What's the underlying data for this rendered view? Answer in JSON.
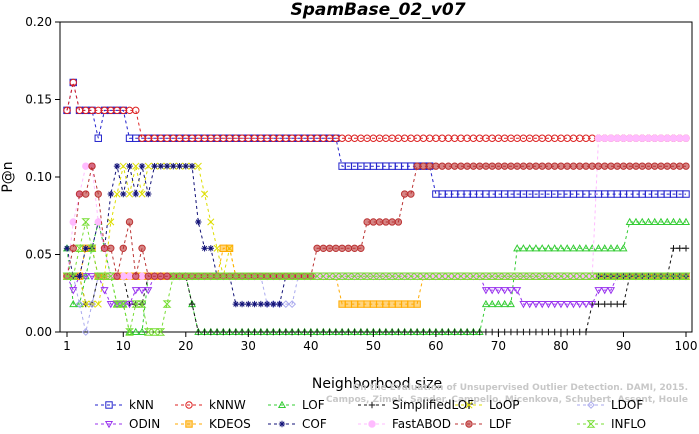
{
  "chart_data": {
    "type": "line",
    "title": "SpamBase_02_v07",
    "xlabel": "Neighborhood size",
    "ylabel": "P@n",
    "xlim": [
      1,
      100
    ],
    "ylim": [
      0,
      0.2
    ],
    "xticks": [
      1,
      10,
      20,
      30,
      40,
      50,
      60,
      70,
      80,
      90,
      100
    ],
    "yticks": [
      "0.00",
      "0.05",
      "0.10",
      "0.15",
      "0.20"
    ],
    "credit_line1": "Campos, Zimek, Sander, Campello, Micenkova, Schubert, Assent, Houle",
    "credit_line2": "On the Evaluation of Unsupervised Outlier Detection. DAMI, 2015.",
    "legend_position": "bottom",
    "series": [
      {
        "name": "kNN",
        "color": "#2222cc",
        "marker": "square",
        "points": [
          [
            1,
            0.143
          ],
          [
            2,
            0.161
          ],
          [
            3,
            0.143
          ],
          [
            5,
            0.143
          ],
          [
            6,
            0.125
          ],
          [
            7,
            0.143
          ],
          [
            10,
            0.143
          ],
          [
            11,
            0.125
          ],
          [
            44,
            0.125
          ],
          [
            45,
            0.107
          ],
          [
            59,
            0.107
          ],
          [
            60,
            0.089
          ],
          [
            100,
            0.089
          ]
        ]
      },
      {
        "name": "kNNW",
        "color": "#dd2222",
        "marker": "circle",
        "points": [
          [
            1,
            0.143
          ],
          [
            2,
            0.161
          ],
          [
            3,
            0.143
          ],
          [
            12,
            0.143
          ],
          [
            13,
            0.125
          ],
          [
            100,
            0.125
          ]
        ]
      },
      {
        "name": "LOF",
        "color": "#33cc33",
        "marker": "triangle",
        "points": [
          [
            1,
            0.054
          ],
          [
            2,
            0.018
          ],
          [
            3,
            0.018
          ],
          [
            4,
            0.036
          ],
          [
            5,
            0.054
          ],
          [
            6,
            0.071
          ],
          [
            7,
            0.054
          ],
          [
            8,
            0.036
          ],
          [
            9,
            0.018
          ],
          [
            10,
            0.018
          ],
          [
            11,
            0.0
          ],
          [
            13,
            0.0
          ],
          [
            14,
            0.036
          ],
          [
            20,
            0.036
          ],
          [
            21,
            0.018
          ],
          [
            22,
            0.0
          ],
          [
            67,
            0.0
          ],
          [
            68,
            0.018
          ],
          [
            72,
            0.018
          ],
          [
            73,
            0.054
          ],
          [
            90,
            0.054
          ],
          [
            91,
            0.071
          ],
          [
            100,
            0.071
          ]
        ]
      },
      {
        "name": "SimplifiedLOF",
        "color": "#111111",
        "marker": "plus",
        "points": [
          [
            1,
            0.036
          ],
          [
            2,
            0.036
          ],
          [
            3,
            0.036
          ],
          [
            4,
            0.018
          ],
          [
            5,
            0.018
          ],
          [
            6,
            0.036
          ],
          [
            10,
            0.036
          ],
          [
            11,
            0.018
          ],
          [
            13,
            0.018
          ],
          [
            14,
            0.036
          ],
          [
            20,
            0.036
          ],
          [
            21,
            0.018
          ],
          [
            22,
            0.0
          ],
          [
            84,
            0.0
          ],
          [
            85,
            0.018
          ],
          [
            90,
            0.018
          ],
          [
            91,
            0.036
          ],
          [
            97,
            0.036
          ],
          [
            98,
            0.054
          ],
          [
            100,
            0.054
          ]
        ]
      },
      {
        "name": "LoOP",
        "color": "#dddd00",
        "marker": "x",
        "points": [
          [
            1,
            0.036
          ],
          [
            3,
            0.036
          ],
          [
            4,
            0.018
          ],
          [
            6,
            0.018
          ],
          [
            7,
            0.036
          ],
          [
            8,
            0.071
          ],
          [
            9,
            0.089
          ],
          [
            10,
            0.107
          ],
          [
            11,
            0.089
          ],
          [
            12,
            0.107
          ],
          [
            13,
            0.089
          ],
          [
            14,
            0.107
          ],
          [
            22,
            0.107
          ],
          [
            23,
            0.089
          ],
          [
            24,
            0.071
          ],
          [
            25,
            0.054
          ],
          [
            26,
            0.036
          ],
          [
            27,
            0.054
          ],
          [
            28,
            0.036
          ],
          [
            100,
            0.036
          ]
        ]
      },
      {
        "name": "LDOF",
        "color": "#aaaaee",
        "marker": "diamond",
        "points": [
          [
            1,
            0.036
          ],
          [
            2,
            0.036
          ],
          [
            3,
            0.018
          ],
          [
            4,
            0.0
          ],
          [
            5,
            0.018
          ],
          [
            6,
            0.036
          ],
          [
            32,
            0.036
          ],
          [
            33,
            0.018
          ],
          [
            37,
            0.018
          ],
          [
            38,
            0.036
          ],
          [
            100,
            0.036
          ]
        ]
      },
      {
        "name": "ODIN",
        "color": "#9933ee",
        "marker": "triangle-down",
        "points": [
          [
            1,
            0.036
          ],
          [
            2,
            0.027
          ],
          [
            3,
            0.036
          ],
          [
            6,
            0.036
          ],
          [
            7,
            0.027
          ],
          [
            8,
            0.018
          ],
          [
            9,
            0.018
          ],
          [
            10,
            0.018
          ],
          [
            11,
            0.018
          ],
          [
            12,
            0.027
          ],
          [
            13,
            0.027
          ],
          [
            14,
            0.027
          ],
          [
            15,
            0.036
          ],
          [
            67,
            0.036
          ],
          [
            68,
            0.027
          ],
          [
            74,
            0.018
          ],
          [
            85,
            0.018
          ],
          [
            86,
            0.027
          ],
          [
            89,
            0.036
          ],
          [
            100,
            0.036
          ]
        ]
      },
      {
        "name": "KDEOS",
        "color": "#ffaa00",
        "marker": "square-filled",
        "points": [
          [
            1,
            0.036
          ],
          [
            3,
            0.036
          ],
          [
            4,
            0.054
          ],
          [
            5,
            0.054
          ],
          [
            6,
            0.036
          ],
          [
            25,
            0.036
          ],
          [
            26,
            0.054
          ],
          [
            27,
            0.054
          ],
          [
            28,
            0.036
          ],
          [
            44,
            0.036
          ],
          [
            45,
            0.018
          ],
          [
            57,
            0.018
          ],
          [
            58,
            0.036
          ],
          [
            100,
            0.036
          ]
        ]
      },
      {
        "name": "COF",
        "color": "#111177",
        "marker": "asterisk",
        "points": [
          [
            1,
            0.054
          ],
          [
            2,
            0.036
          ],
          [
            3,
            0.036
          ],
          [
            4,
            0.054
          ],
          [
            6,
            0.071
          ],
          [
            7,
            0.054
          ],
          [
            8,
            0.089
          ],
          [
            9,
            0.107
          ],
          [
            10,
            0.089
          ],
          [
            11,
            0.107
          ],
          [
            12,
            0.089
          ],
          [
            13,
            0.107
          ],
          [
            14,
            0.089
          ],
          [
            15,
            0.107
          ],
          [
            21,
            0.107
          ],
          [
            22,
            0.071
          ],
          [
            23,
            0.054
          ],
          [
            24,
            0.054
          ],
          [
            25,
            0.036
          ],
          [
            27,
            0.036
          ],
          [
            28,
            0.018
          ],
          [
            35,
            0.018
          ],
          [
            36,
            0.036
          ],
          [
            100,
            0.036
          ]
        ]
      },
      {
        "name": "FastABOD",
        "color": "#ffbbff",
        "marker": "circle-filled",
        "points": [
          [
            1,
            0.036
          ],
          [
            2,
            0.071
          ],
          [
            3,
            0.089
          ],
          [
            4,
            0.107
          ],
          [
            5,
            0.107
          ],
          [
            6,
            0.071
          ],
          [
            7,
            0.054
          ],
          [
            8,
            0.036
          ],
          [
            85,
            0.036
          ],
          [
            86,
            0.125
          ],
          [
            100,
            0.125
          ]
        ]
      },
      {
        "name": "LDF",
        "color": "#bb3333",
        "marker": "circle-dot",
        "points": [
          [
            1,
            0.036
          ],
          [
            2,
            0.054
          ],
          [
            3,
            0.089
          ],
          [
            4,
            0.089
          ],
          [
            5,
            0.107
          ],
          [
            6,
            0.089
          ],
          [
            7,
            0.054
          ],
          [
            8,
            0.054
          ],
          [
            9,
            0.036
          ],
          [
            10,
            0.054
          ],
          [
            11,
            0.071
          ],
          [
            12,
            0.036
          ],
          [
            13,
            0.054
          ],
          [
            14,
            0.036
          ],
          [
            40,
            0.036
          ],
          [
            41,
            0.054
          ],
          [
            48,
            0.054
          ],
          [
            49,
            0.071
          ],
          [
            54,
            0.071
          ],
          [
            55,
            0.089
          ],
          [
            57,
            0.107
          ],
          [
            62,
            0.107
          ],
          [
            63,
            0.107
          ],
          [
            100,
            0.107
          ]
        ]
      },
      {
        "name": "INFLO",
        "color": "#77dd33",
        "marker": "hourglass",
        "points": [
          [
            1,
            0.036
          ],
          [
            3,
            0.054
          ],
          [
            4,
            0.071
          ],
          [
            5,
            0.054
          ],
          [
            6,
            0.036
          ],
          [
            8,
            0.036
          ],
          [
            9,
            0.018
          ],
          [
            10,
            0.018
          ],
          [
            11,
            0.0
          ],
          [
            12,
            0.018
          ],
          [
            13,
            0.018
          ],
          [
            14,
            0.0
          ],
          [
            16,
            0.0
          ],
          [
            17,
            0.018
          ],
          [
            18,
            0.036
          ],
          [
            19,
            0.036
          ],
          [
            20,
            0.036
          ],
          [
            100,
            0.036
          ]
        ]
      }
    ]
  }
}
